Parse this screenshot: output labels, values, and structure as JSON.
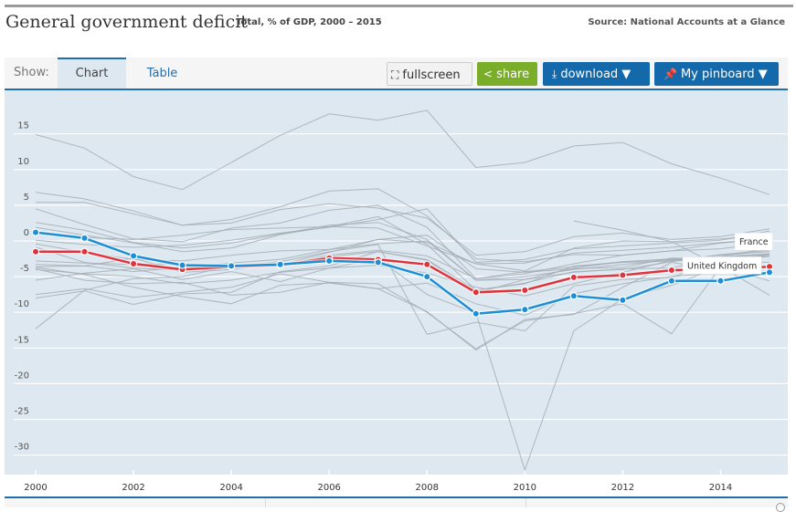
{
  "header": {
    "title": "General government deficit",
    "subtitle": "Total, % of GDP, 2000 – 2015",
    "source": "Source: National Accounts at a Glance"
  },
  "toolbar": {
    "show_label": "Show:",
    "tabs": [
      {
        "label": "Chart",
        "active": true
      },
      {
        "label": "Table",
        "active": false
      }
    ],
    "fullscreen_label": "fullscreen",
    "share_label": "share",
    "download_label": "download ▼",
    "pinboard_label": "My pinboard ▼",
    "icons": {
      "fullscreen": "expand-icon",
      "share": "share-icon",
      "download": "download-icon",
      "pinboard": "pin-icon"
    }
  },
  "colors": {
    "france": "#e0333c",
    "uk": "#1e8fd5",
    "other": "#a4adb5",
    "background": "#dde8f0",
    "accent": "#1f6fae"
  },
  "chart_data": {
    "type": "line",
    "title": "General government deficit",
    "subtitle": "Total, % of GDP, 2000 – 2015",
    "xlabel": "",
    "ylabel": "",
    "x": [
      2000,
      2001,
      2002,
      2003,
      2004,
      2005,
      2006,
      2007,
      2008,
      2009,
      2010,
      2011,
      2012,
      2013,
      2014,
      2015
    ],
    "x_ticks": [
      "2000",
      "2002",
      "2004",
      "2006",
      "2008",
      "2010",
      "2012",
      "2014"
    ],
    "y_ticks": [
      "15",
      "10",
      "5",
      "0",
      "-5",
      "-10",
      "-15",
      "-20",
      "-25",
      "-30"
    ],
    "ylim": [
      -33,
      20
    ],
    "grid": true,
    "highlighted_series": [
      {
        "name": "France",
        "label": "France",
        "values": [
          -1.5,
          -1.5,
          -3.2,
          -4.0,
          -3.6,
          -3.4,
          -2.4,
          -2.6,
          -3.3,
          -7.2,
          -6.9,
          -5.1,
          -4.8,
          -4.1,
          -3.9,
          -3.6
        ]
      },
      {
        "name": "United Kingdom",
        "label": "United Kingdom",
        "values": [
          1.2,
          0.4,
          -2.1,
          -3.4,
          -3.5,
          -3.3,
          -2.8,
          -3.0,
          -5.0,
          -10.2,
          -9.6,
          -7.7,
          -8.3,
          -5.6,
          -5.6,
          -4.4
        ]
      }
    ],
    "background_series": [
      {
        "name": "country-a",
        "values": [
          14.9,
          13.0,
          9.0,
          7.2,
          null,
          null,
          null,
          null,
          null,
          null,
          null,
          null,
          null,
          null,
          null,
          null
        ]
      },
      {
        "name": "country-b",
        "values": [
          null,
          null,
          null,
          7.2,
          11.0,
          14.8,
          17.8,
          16.9,
          18.3,
          10.3,
          11.0,
          13.3,
          13.8,
          10.8,
          8.8,
          6.5
        ]
      },
      {
        "name": "country-c",
        "values": [
          6.8,
          5.9,
          4.2,
          2.2,
          3.0,
          4.8,
          7.0,
          7.3,
          3.5,
          -2.5,
          -2.9,
          -1.9,
          -2.0,
          -1.4,
          -1.1,
          -0.2
        ]
      },
      {
        "name": "country-d",
        "values": [
          5.4,
          5.4,
          3.8,
          2.2,
          2.5,
          4.4,
          5.2,
          4.6,
          3.2,
          -2.0,
          -1.5,
          0.6,
          1.1,
          0.2,
          0.6,
          1.7
        ]
      },
      {
        "name": "country-e",
        "values": [
          4.5,
          2.3,
          0.3,
          -0.1,
          1.8,
          2.5,
          4.3,
          5.0,
          1.9,
          -5.3,
          -4.6,
          -3.2,
          -2.0,
          -1.4,
          -0.3,
          0.2
        ]
      },
      {
        "name": "country-f",
        "values": [
          2.6,
          1.5,
          -0.2,
          -1.0,
          -0.3,
          1.0,
          2.2,
          2.6,
          0.2,
          -5.5,
          -5.4,
          -3.8,
          -2.9,
          -2.6,
          -2.4,
          -1.8
        ]
      },
      {
        "name": "country-g",
        "values": [
          1.9,
          0.8,
          -0.3,
          -1.5,
          -1.0,
          0.9,
          2.0,
          3.4,
          -0.5,
          -6.9,
          -5.9,
          -4.3,
          -4.0,
          -2.9,
          -1.9,
          -1.3
        ]
      },
      {
        "name": "country-h",
        "values": [
          1.2,
          0.5,
          0.2,
          0.8,
          1.6,
          1.8,
          2.0,
          1.8,
          -0.7,
          -3.2,
          -3.1,
          -1.7,
          -1.3,
          -0.9,
          -0.2,
          0.3
        ]
      },
      {
        "name": "country-i",
        "values": [
          0.1,
          -0.5,
          -0.9,
          -0.6,
          0.1,
          1.1,
          1.9,
          3.0,
          4.5,
          -3.0,
          -2.6,
          -1.1,
          -0.7,
          -0.3,
          0.1,
          1.4
        ]
      },
      {
        "name": "country-j",
        "values": [
          -0.4,
          -1.6,
          -2.6,
          -2.8,
          -2.0,
          -1.4,
          -1.2,
          -0.4,
          0.0,
          -5.5,
          -5.0,
          -4.0,
          -3.3,
          -2.7,
          -2.0,
          -1.5
        ]
      },
      {
        "name": "country-k",
        "values": [
          -0.9,
          -3.0,
          -3.8,
          -4.1,
          -3.8,
          -3.3,
          -1.6,
          0.2,
          -0.2,
          -3.2,
          -4.2,
          -1.0,
          0.0,
          -0.1,
          0.3,
          0.7
        ]
      },
      {
        "name": "country-l",
        "values": [
          -2.8,
          -3.1,
          -3.3,
          -3.2,
          -3.4,
          -3.3,
          -2.0,
          -1.3,
          -2.1,
          -5.3,
          -4.3,
          -3.6,
          -2.9,
          -2.5,
          -2.2,
          -1.0
        ]
      },
      {
        "name": "country-m",
        "values": [
          -3.3,
          -3.5,
          -4.3,
          -3.7,
          -3.1,
          -2.6,
          -1.2,
          0.2,
          0.8,
          -3.9,
          -4.4,
          -3.9,
          -3.7,
          -2.4,
          -2.6,
          -2.0
        ]
      },
      {
        "name": "country-n",
        "values": [
          -3.9,
          -5.5,
          -6.0,
          -5.8,
          -7.6,
          -7.2,
          -5.8,
          -6.0,
          -10.0,
          -15.1,
          -11.2,
          -10.2,
          -8.8,
          -13.0,
          -3.6,
          -5.6
        ]
      },
      {
        "name": "country-o",
        "values": [
          -3.7,
          -4.7,
          -6.5,
          -7.8,
          -8.8,
          -6.2,
          -5.9,
          -6.7,
          -9.9,
          -15.3,
          -11.0,
          -10.3,
          -6.5,
          -3.0,
          -4.0,
          -3.7
        ]
      },
      {
        "name": "country-p",
        "values": [
          -4.0,
          -4.6,
          -5.0,
          -6.0,
          -5.5,
          -4.4,
          -3.8,
          -3.4,
          -4.5,
          -6.5,
          -7.7,
          -6.0,
          -4.4,
          -2.7,
          -2.2,
          -1.8
        ]
      },
      {
        "name": "country-q",
        "values": [
          -8.0,
          -7.0,
          -8.9,
          -7.4,
          -7.2,
          -4.3,
          -3.5,
          -1.5,
          -2.7,
          -7.3,
          -5.4,
          -4.4,
          -3.9,
          -3.8,
          -2.3,
          -1.9
        ]
      },
      {
        "name": "country-r",
        "values": [
          -12.3,
          -6.9,
          -5.3,
          -5.0,
          -3.5,
          -2.9,
          -1.5,
          -0.5,
          -13.1,
          -11.4,
          -12.6,
          -6.3,
          -5.4,
          -5.1,
          -2.8,
          -3.0
        ]
      },
      {
        "name": "country-s",
        "values": [
          -5.5,
          -4.5,
          -3.9,
          -5.4,
          -4.3,
          -5.7,
          -3.8,
          -2.5,
          -7.5,
          -10.1,
          -32.1,
          -12.6,
          -8.1,
          -6.2,
          -3.6,
          -1.9
        ]
      },
      {
        "name": "country-t",
        "values": [
          null,
          null,
          null,
          null,
          null,
          null,
          null,
          null,
          null,
          null,
          null,
          2.8,
          1.5,
          -0.1,
          -3.6,
          -7.6
        ]
      },
      {
        "name": "country-u",
        "values": [
          -7.5,
          -6.7,
          -7.9,
          -7.2,
          -6.5,
          -4.6,
          -5.8,
          -6.7,
          -5.9,
          -8.8,
          -10.4,
          -7.4,
          -6.0,
          -5.0,
          -4.4,
          -3.6
        ]
      },
      {
        "name": "country-v",
        "values": [
          -3.6,
          -3.5,
          -2.4,
          -4.4,
          -4.0,
          -3.2,
          -2.2,
          -1.5,
          -2.6,
          -6.9,
          -6.0,
          -3.5,
          -3.0,
          -2.8,
          -2.6,
          -2.2
        ]
      }
    ]
  }
}
